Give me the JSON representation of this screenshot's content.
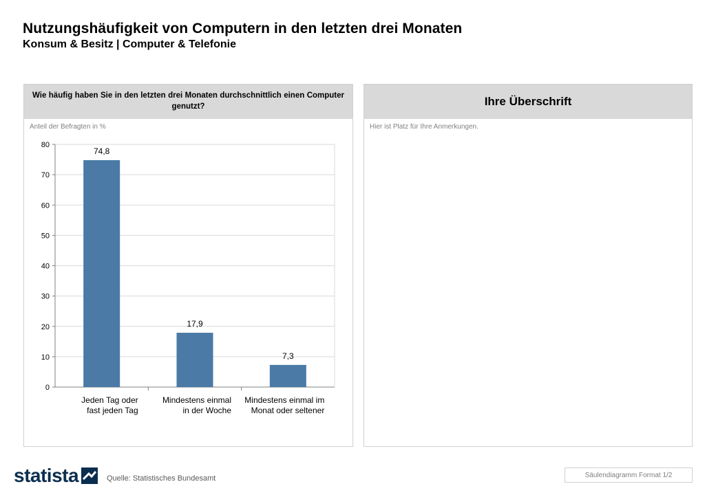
{
  "header": {
    "title": "Nutzungshäufigkeit von Computern in den letzten drei Monaten",
    "subtitle": "Konsum & Besitz | Computer & Telefonie"
  },
  "left_panel": {
    "question": "Wie häufig haben Sie in den letzten drei Monaten durchschnittlich einen Computer genutzt?",
    "note": "Anteil der Befragten in %"
  },
  "right_panel": {
    "heading": "Ihre Überschrift",
    "note": "Hier ist Platz für Ihre Anmerkungen."
  },
  "footer": {
    "logo": "statista",
    "source": "Quelle: Statistisches Bundesamt",
    "format": "Säulendiagramm Format 1/2"
  },
  "chart_data": {
    "type": "bar",
    "categories": [
      [
        "Jeden Tag oder",
        "fast jeden Tag"
      ],
      [
        "Mindestens einmal",
        "in der Woche"
      ],
      [
        "Mindestens einmal im",
        "Monat oder seltener"
      ]
    ],
    "values": [
      74.8,
      17.9,
      7.3
    ],
    "value_labels": [
      "74,8",
      "17,9",
      "7,3"
    ],
    "ylim": [
      0,
      80
    ],
    "yticks": [
      0,
      10,
      20,
      30,
      40,
      50,
      60,
      70,
      80
    ],
    "grid": true,
    "bar_color": "#4a7aa5"
  },
  "colors": {
    "bar": "#4a7aa5",
    "header_bg": "#d9d9d9",
    "logo": "#0b2e4f"
  }
}
